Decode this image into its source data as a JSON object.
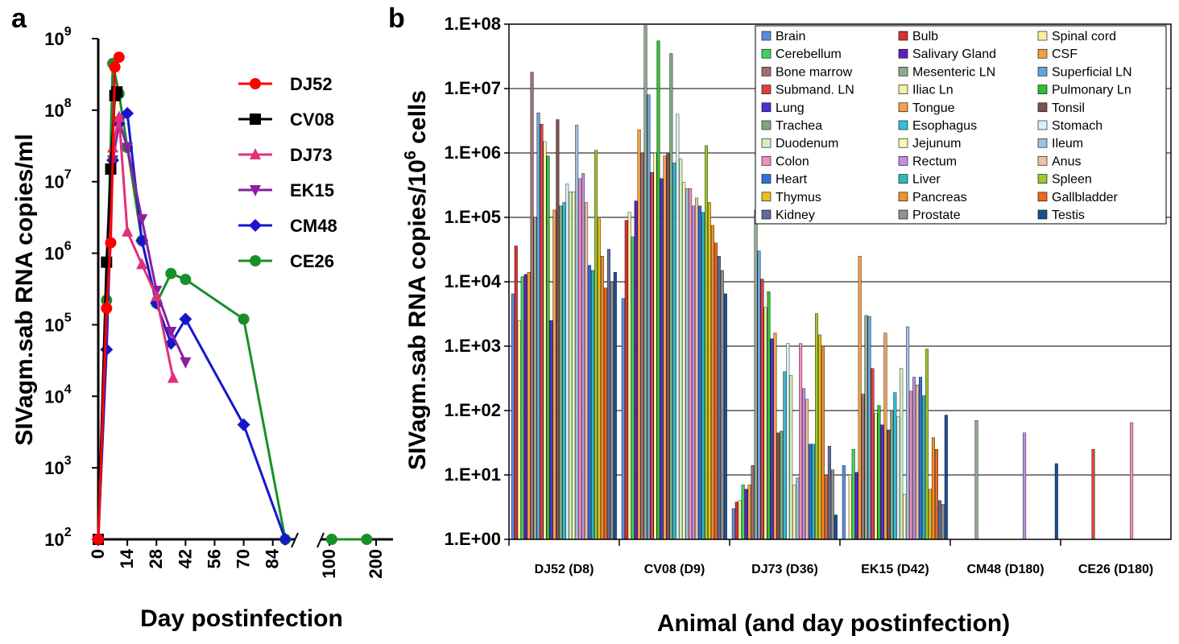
{
  "panels": {
    "a": "a",
    "b": "b"
  },
  "chart_data": [
    {
      "type": "line",
      "panel": "a",
      "xlabel": "Day postinfection",
      "ylabel": "SIVagm.sab RNA copies/ml",
      "yscale": "log",
      "ylim": [
        100,
        1000000000
      ],
      "yticks": [
        {
          "v": 100,
          "base": "10",
          "exp": "2"
        },
        {
          "v": 1000,
          "base": "10",
          "exp": "3"
        },
        {
          "v": 10000,
          "base": "10",
          "exp": "4"
        },
        {
          "v": 100000,
          "base": "10",
          "exp": "5"
        },
        {
          "v": 1000000,
          "base": "10",
          "exp": "6"
        },
        {
          "v": 10000000,
          "base": "10",
          "exp": "7"
        },
        {
          "v": 100000000,
          "base": "10",
          "exp": "8"
        },
        {
          "v": 1000000000,
          "base": "10",
          "exp": "9"
        }
      ],
      "xticks": [
        "0",
        "14",
        "28",
        "42",
        "56",
        "70",
        "84",
        "100",
        "200"
      ],
      "x_break": "broken x-axis between 91 and 100",
      "legend_position": "top-right",
      "series": [
        {
          "name": "DJ52",
          "color": "#ff0000",
          "marker": "circle",
          "x": [
            0,
            4,
            6,
            8,
            10
          ],
          "y": [
            100,
            170000,
            1400000,
            400000000,
            550000000
          ]
        },
        {
          "name": "CV08",
          "color": "#000000",
          "marker": "square",
          "x": [
            0,
            4,
            6,
            8,
            9
          ],
          "y": [
            100,
            750000,
            15000000,
            160000000,
            180000000
          ]
        },
        {
          "name": "DJ73",
          "color": "#e0307a",
          "marker": "triangle-up",
          "x": [
            0,
            4,
            7,
            10,
            14,
            21,
            28,
            36
          ],
          "y": [
            100,
            200000,
            30000000,
            80000000,
            2000000,
            700000,
            250000,
            18000
          ]
        },
        {
          "name": "EK15",
          "color": "#8a1fa0",
          "marker": "triangle-down",
          "x": [
            0,
            4,
            7,
            10,
            14,
            21,
            28,
            35,
            42
          ],
          "y": [
            100,
            150000,
            20000000,
            70000000,
            30000000,
            3000000,
            300000,
            80000,
            30000
          ]
        },
        {
          "name": "CM48",
          "color": "#1616d0",
          "marker": "diamond",
          "x": [
            0,
            4,
            7,
            10,
            14,
            21,
            28,
            35,
            42,
            70,
            90
          ],
          "y": [
            100,
            45000,
            20000000,
            65000000,
            90000000,
            1500000,
            200000,
            55000,
            120000,
            4000,
            100
          ]
        },
        {
          "name": "CE26",
          "color": "#18902a",
          "marker": "circle",
          "x": [
            0,
            4,
            7,
            10,
            14,
            21,
            28,
            35,
            42,
            70,
            90,
            105,
            180
          ],
          "y": [
            100,
            220000,
            450000000,
            170000000,
            30000000,
            1500000,
            200000,
            520000,
            430000,
            120000,
            100,
            100,
            100
          ]
        }
      ]
    },
    {
      "type": "bar",
      "panel": "b",
      "xlabel": "Animal (and day postinfection)",
      "ylabel": "SIVagm.sab RNA copies/10",
      "ylabel_sup": "6",
      "ylabel_suffix": " cells",
      "yscale": "log",
      "ylim": [
        1,
        100000000
      ],
      "yticks": [
        {
          "v": 1,
          "label": "1.E+00"
        },
        {
          "v": 10,
          "label": "1.E+01"
        },
        {
          "v": 100,
          "label": "1.E+02"
        },
        {
          "v": 1000,
          "label": "1.E+03"
        },
        {
          "v": 10000,
          "label": "1.E+04"
        },
        {
          "v": 100000,
          "label": "1.E+05"
        },
        {
          "v": 1000000,
          "label": "1.E+06"
        },
        {
          "v": 10000000,
          "label": "1.E+07"
        },
        {
          "v": 100000000,
          "label": "1.E+08"
        }
      ],
      "categories": [
        "DJ52 (D8)",
        "CV08 (D9)",
        "DJ73 (D36)",
        "EK15 (D42)",
        "CM48 (D180)",
        "CE26 (D180)"
      ],
      "grid": true,
      "legend_position": "top-right",
      "series": [
        {
          "name": "Brain",
          "color": "#5b8ee0",
          "values": [
            6500,
            5500,
            3,
            14,
            null,
            null
          ]
        },
        {
          "name": "Bulb",
          "color": "#d83030",
          "values": [
            36000,
            90000,
            3.8,
            null,
            null,
            null
          ]
        },
        {
          "name": "Spinal cord",
          "color": "#f6f0a0",
          "values": [
            2500,
            120000,
            4,
            10,
            null,
            null
          ]
        },
        {
          "name": "Cerebellum",
          "color": "#40d060",
          "values": [
            12000,
            50000,
            7,
            25,
            null,
            null
          ]
        },
        {
          "name": "Salivary Gland",
          "color": "#6020c0",
          "values": [
            13000,
            180000,
            6,
            11,
            null,
            null
          ]
        },
        {
          "name": "CSF",
          "color": "#f0a040",
          "values": [
            14000,
            2300000,
            7,
            25000,
            null,
            null
          ]
        },
        {
          "name": "Bone marrow",
          "color": "#a07070",
          "values": [
            18000000,
            1000000,
            14,
            180,
            null,
            null
          ]
        },
        {
          "name": "Mesenteric LN",
          "color": "#90a890",
          "values": [
            100000,
            95000000,
            130000,
            3000,
            70,
            null
          ]
        },
        {
          "name": "Superficial LN",
          "color": "#6aa0e0",
          "values": [
            4200000,
            8000000,
            30000,
            2900,
            null,
            null
          ]
        },
        {
          "name": "Submand. LN",
          "color": "#e04040",
          "values": [
            2800000,
            500000,
            11000,
            450,
            null,
            25
          ]
        },
        {
          "name": "Iliac Ln",
          "color": "#f0f0a8",
          "values": [
            1500000,
            1000000,
            4000,
            90,
            null,
            null
          ]
        },
        {
          "name": "Pulmonary Ln",
          "color": "#30c030",
          "values": [
            900000,
            55000000,
            7000,
            120,
            null,
            null
          ]
        },
        {
          "name": "Lung",
          "color": "#5030d0",
          "values": [
            2500,
            400000,
            1300,
            60,
            null,
            null
          ]
        },
        {
          "name": "Tongue",
          "color": "#f0a050",
          "values": [
            130000,
            900000,
            1600,
            1600,
            null,
            null
          ]
        },
        {
          "name": "Tonsil",
          "color": "#805050",
          "values": [
            3300000,
            1000000,
            45,
            50,
            null,
            null
          ]
        },
        {
          "name": "Trachea",
          "color": "#80a880",
          "values": [
            150000,
            35000000,
            48,
            100,
            null,
            null
          ]
        },
        {
          "name": "Esophagus",
          "color": "#30c0d8",
          "values": [
            170000,
            700000,
            400,
            190,
            null,
            null
          ]
        },
        {
          "name": "Stomach",
          "color": "#d8f0f8",
          "values": [
            330000,
            4000000,
            1100,
            80,
            null,
            null
          ]
        },
        {
          "name": "Duodenum",
          "color": "#d0f0c0",
          "values": [
            250000,
            800000,
            350,
            450,
            null,
            null
          ]
        },
        {
          "name": "Jejunum",
          "color": "#f8f8b0",
          "values": [
            250000,
            350000,
            7,
            5,
            null,
            null
          ]
        },
        {
          "name": "Ileum",
          "color": "#a0c0e8",
          "values": [
            2700000,
            280000,
            9,
            2000,
            null,
            null
          ]
        },
        {
          "name": "Colon",
          "color": "#f090c0",
          "values": [
            400000,
            280000,
            1100,
            200,
            null,
            65
          ]
        },
        {
          "name": "Rectum",
          "color": "#c090e0",
          "values": [
            480000,
            150000,
            220,
            330,
            45,
            null
          ]
        },
        {
          "name": "Anus",
          "color": "#f0c0a0",
          "values": [
            170000,
            200000,
            150,
            250,
            null,
            null
          ]
        },
        {
          "name": "Heart",
          "color": "#3070e0",
          "values": [
            18000,
            150000,
            30,
            330,
            null,
            null
          ]
        },
        {
          "name": "Liver",
          "color": "#30b8c0",
          "values": [
            15000,
            120000,
            30,
            170,
            null,
            null
          ]
        },
        {
          "name": "Spleen",
          "color": "#a0c830",
          "values": [
            1100000,
            1300000,
            3200,
            900,
            null,
            null
          ]
        },
        {
          "name": "Thymus",
          "color": "#e8c020",
          "values": [
            95000,
            170000,
            1500,
            6,
            null,
            null
          ]
        },
        {
          "name": "Pancreas",
          "color": "#f09030",
          "values": [
            25000,
            75000,
            1000,
            38,
            null,
            null
          ]
        },
        {
          "name": "Gallbladder",
          "color": "#f06820",
          "values": [
            8000,
            40000,
            10,
            25,
            null,
            null
          ]
        },
        {
          "name": "Kidney",
          "color": "#606ca0",
          "values": [
            32000,
            25000,
            28,
            4,
            null,
            null
          ]
        },
        {
          "name": "Prostate",
          "color": "#909090",
          "values": [
            10000,
            15000,
            12,
            3.5,
            null,
            null
          ]
        },
        {
          "name": "Testis",
          "color": "#1a5090",
          "values": [
            14000,
            6500,
            2.4,
            85,
            15,
            null
          ]
        }
      ]
    }
  ]
}
